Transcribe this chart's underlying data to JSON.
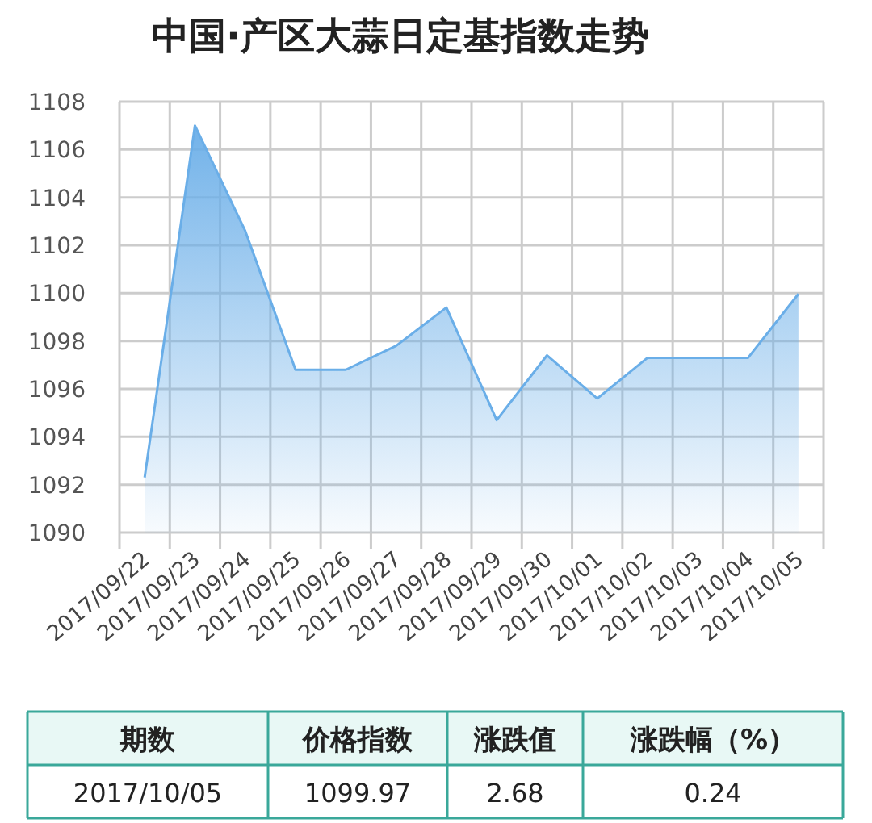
{
  "chart_data": {
    "type": "area",
    "title": "中国·产区大蒜日定基指数走势",
    "categories": [
      "2017/09/22",
      "2017/09/23",
      "2017/09/24",
      "2017/09/25",
      "2017/09/26",
      "2017/09/27",
      "2017/09/28",
      "2017/09/29",
      "2017/09/30",
      "2017/10/01",
      "2017/10/02",
      "2017/10/03",
      "2017/10/04",
      "2017/10/05"
    ],
    "values": [
      1092.3,
      1107.0,
      1102.6,
      1096.8,
      1096.8,
      1097.8,
      1099.4,
      1094.7,
      1097.4,
      1095.6,
      1097.3,
      1097.3,
      1097.3,
      1099.97
    ],
    "color": "#6aaee8",
    "ylim": [
      1090,
      1108
    ],
    "yticks": [
      1090,
      1092,
      1094,
      1096,
      1098,
      1100,
      1102,
      1104,
      1106,
      1108
    ],
    "grid": true,
    "annotations": [
      "期数",
      "价格指数",
      "涨跌值",
      "涨跌幅（%）",
      "2017/10/05",
      "1099.97",
      "2.68",
      "0.24"
    ]
  }
}
